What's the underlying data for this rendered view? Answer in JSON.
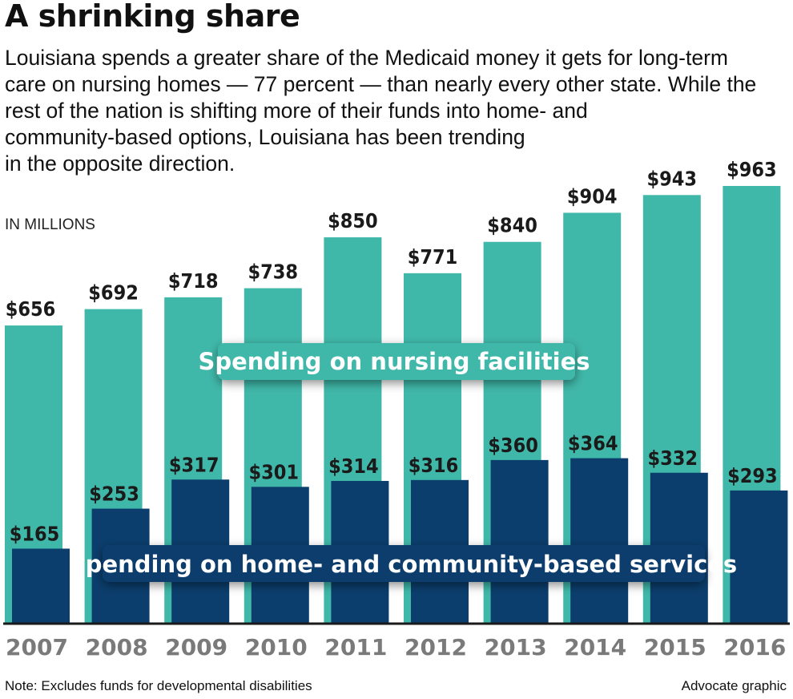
{
  "title": "A shrinking share",
  "subtitle_lines": [
    "Louisiana spends a greater share of the Medicaid money it gets for long-term",
    "care on nursing homes — 77 percent — than nearly every other state. While the",
    "rest of the nation is shifting more of their funds into home- and",
    "community-based options, Louisiana has been trending",
    "in the opposite direction."
  ],
  "note": "Note: Excludes funds for developmental disabilities",
  "credit": "Advocate graphic",
  "chart_data": {
    "type": "bar",
    "unit_label": "IN MILLIONS",
    "categories": [
      "2007",
      "2008",
      "2009",
      "2010",
      "2011",
      "2012",
      "2013",
      "2014",
      "2015",
      "2016"
    ],
    "ylim": [
      0,
      1000
    ],
    "grid": false,
    "series": [
      {
        "name": "Spending on nursing facilities",
        "color": "#40b8a9",
        "values": [
          656,
          692,
          718,
          738,
          850,
          771,
          840,
          904,
          943,
          963
        ],
        "labels": [
          "$656",
          "$692",
          "$718",
          "$738",
          "$850",
          "$771",
          "$840",
          "$904",
          "$943",
          "$963"
        ]
      },
      {
        "name": "Spending on home- and community-based services",
        "color": "#0b3e6d",
        "values": [
          165,
          253,
          317,
          301,
          314,
          316,
          360,
          364,
          332,
          293
        ],
        "labels": [
          "$165",
          "$253",
          "$317",
          "$301",
          "$314",
          "$316",
          "$360",
          "$364",
          "$332",
          "$293"
        ]
      }
    ]
  }
}
